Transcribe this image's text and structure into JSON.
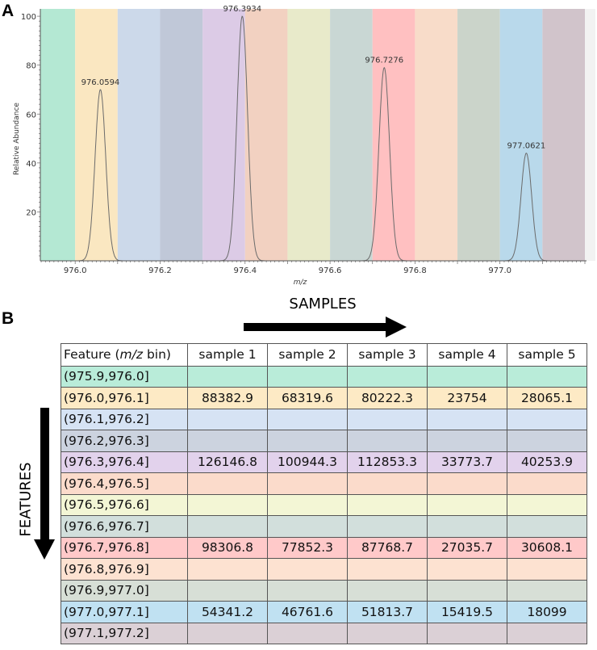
{
  "panels": {
    "a": "A",
    "b": "B"
  },
  "chart_data": {
    "type": "line",
    "xlabel": "m/z",
    "ylabel": "Relative Abundance",
    "xlim": [
      975.918,
      977.2
    ],
    "ylim": [
      0,
      103
    ],
    "xticks": [
      "976.0",
      "976.2",
      "976.4",
      "976.6",
      "976.8",
      "977.0"
    ],
    "yticks": [
      "20",
      "40",
      "60",
      "80",
      "100"
    ],
    "grid": false,
    "bins": [
      {
        "range": [
          975.9,
          976.0
        ],
        "color": "#b4e8d3"
      },
      {
        "range": [
          976.0,
          976.1
        ],
        "color": "#fae7c1"
      },
      {
        "range": [
          976.1,
          976.2
        ],
        "color": "#ccd9ea"
      },
      {
        "range": [
          976.2,
          976.3
        ],
        "color": "#c0c8d8"
      },
      {
        "range": [
          976.3,
          976.4
        ],
        "color": "#dccbe6"
      },
      {
        "range": [
          976.4,
          976.5
        ],
        "color": "#f2d1c1"
      },
      {
        "range": [
          976.5,
          976.6
        ],
        "color": "#e8eaca"
      },
      {
        "range": [
          976.6,
          976.7
        ],
        "color": "#c9d7d4"
      },
      {
        "range": [
          976.7,
          976.8
        ],
        "color": "#ffc0c1"
      },
      {
        "range": [
          976.8,
          976.9
        ],
        "color": "#f8dcc9"
      },
      {
        "range": [
          976.9,
          977.0
        ],
        "color": "#cbd4ca"
      },
      {
        "range": [
          977.0,
          977.1
        ],
        "color": "#b9d9eb"
      },
      {
        "range": [
          977.1,
          977.2
        ],
        "color": "#d1c4cb"
      }
    ],
    "peaks": [
      {
        "mz": 976.0594,
        "intensity": 70,
        "label": "976.0594"
      },
      {
        "mz": 976.3934,
        "intensity": 100,
        "label": "976.3934"
      },
      {
        "mz": 976.7276,
        "intensity": 79,
        "label": "976.7276"
      },
      {
        "mz": 977.0621,
        "intensity": 44,
        "label": "977.0621"
      }
    ]
  },
  "table": {
    "samples_label": "SAMPLES",
    "features_label": "FEATURES",
    "header_feature_pre": "Feature (",
    "header_feature_italic": "m/z",
    "header_feature_post": " bin)",
    "headers": [
      "sample 1",
      "sample 2",
      "sample 3",
      "sample 4",
      "sample 5"
    ],
    "rows": [
      {
        "feature": "(975.9,976.0]",
        "color": "#b9ecd9",
        "values": [
          "",
          "",
          "",
          "",
          ""
        ]
      },
      {
        "feature": "(976.0,976.1]",
        "color": "#fdeac5",
        "values": [
          "88382.9",
          "68319.6",
          "80222.3",
          "23754",
          "28065.1"
        ]
      },
      {
        "feature": "(976.1,976.2]",
        "color": "#d6e3f4",
        "values": [
          "",
          "",
          "",
          "",
          ""
        ]
      },
      {
        "feature": "(976.2,976.3]",
        "color": "#ccd3df",
        "values": [
          "",
          "",
          "",
          "",
          ""
        ]
      },
      {
        "feature": "(976.3,976.4]",
        "color": "#e2d2ec",
        "values": [
          "126146.8",
          "100944.3",
          "112853.3",
          "33773.7",
          "40253.9"
        ]
      },
      {
        "feature": "(976.4,976.5]",
        "color": "#fbdbcb",
        "values": [
          "",
          "",
          "",
          "",
          ""
        ]
      },
      {
        "feature": "(976.5,976.6]",
        "color": "#f3f6d5",
        "values": [
          "",
          "",
          "",
          "",
          ""
        ]
      },
      {
        "feature": "(976.6,976.7]",
        "color": "#d2dfdc",
        "values": [
          "",
          "",
          "",
          "",
          ""
        ]
      },
      {
        "feature": "(976.7,976.8]",
        "color": "#ffc9c9",
        "values": [
          "98306.8",
          "77852.3",
          "87768.7",
          "27035.7",
          "30608.1"
        ]
      },
      {
        "feature": "(976.8,976.9]",
        "color": "#fde2d1",
        "values": [
          "",
          "",
          "",
          "",
          ""
        ]
      },
      {
        "feature": "(976.9,977.0]",
        "color": "#d7dfd6",
        "values": [
          "",
          "",
          "",
          "",
          ""
        ]
      },
      {
        "feature": "(977.0,977.1]",
        "color": "#c0e1f2",
        "values": [
          "54341.2",
          "46761.6",
          "51813.7",
          "15419.5",
          "18099"
        ]
      },
      {
        "feature": "(977.1,977.2]",
        "color": "#dbd0d6",
        "values": [
          "",
          "",
          "",
          "",
          ""
        ]
      }
    ]
  }
}
